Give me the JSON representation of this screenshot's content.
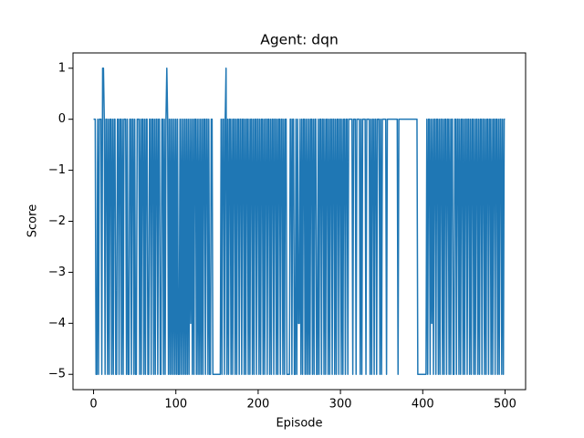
{
  "chart_data": {
    "type": "line",
    "title": "Agent: dqn",
    "x_label": "Episode",
    "y_label": "Score",
    "color": "#1f77b4",
    "xlim": [
      -25,
      525
    ],
    "xticks": [
      0,
      100,
      200,
      300,
      400,
      500
    ],
    "ylim": [
      -5.3,
      1.3
    ],
    "yticks": [
      {
        "value": -5,
        "label": "−5"
      },
      {
        "value": -4,
        "label": "−4"
      },
      {
        "value": -3,
        "label": "−3"
      },
      {
        "value": -2,
        "label": "−2"
      },
      {
        "value": -1,
        "label": "−1"
      },
      0,
      1
    ],
    "values": [
      0,
      0,
      0,
      -5,
      -5,
      0,
      -5,
      0,
      0,
      0,
      -5,
      1,
      1,
      0,
      -5,
      0,
      0,
      -5,
      0,
      -5,
      0,
      0,
      -5,
      0,
      -5,
      0,
      0,
      -5,
      -5,
      0,
      0,
      -5,
      0,
      0,
      -5,
      0,
      -5,
      0,
      0,
      0,
      -5,
      0,
      -5,
      -5,
      0,
      0,
      -5,
      0,
      0,
      -5,
      0,
      -5,
      -5,
      0,
      0,
      0,
      -5,
      0,
      -5,
      0,
      0,
      -5,
      0,
      -5,
      0,
      0,
      -5,
      -5,
      0,
      0,
      -5,
      0,
      0,
      -5,
      0,
      -5,
      0,
      0,
      -5,
      0,
      0,
      -5,
      -5,
      0,
      0,
      -5,
      0,
      -5,
      0,
      1,
      0,
      -5,
      0,
      -5,
      0,
      -5,
      0,
      -5,
      0,
      -5,
      0,
      -5,
      0,
      -5,
      -5,
      0,
      -5,
      0,
      -5,
      0,
      -5,
      0,
      -5,
      0,
      -5,
      0,
      -5,
      0,
      -4,
      0,
      -5,
      0,
      -5,
      0,
      0,
      -5,
      0,
      -5,
      0,
      -5,
      0,
      -5,
      0,
      -5,
      0,
      0,
      -5,
      0,
      0,
      -5,
      0,
      -5,
      -5,
      0,
      0,
      -5,
      -5,
      -5,
      -5,
      -5,
      -5,
      -5,
      -5,
      -5,
      -5,
      0,
      -5,
      0,
      0,
      -5,
      0,
      1,
      -5,
      0,
      -5,
      0,
      0,
      -5,
      0,
      -5,
      0,
      0,
      -5,
      0,
      -5,
      0,
      0,
      -5,
      0,
      0,
      -5,
      0,
      0,
      -5,
      0,
      -5,
      0,
      0,
      -5,
      0,
      -5,
      0,
      0,
      -5,
      0,
      -5,
      0,
      0,
      -5,
      0,
      0,
      -5,
      0,
      -5,
      0,
      0,
      -5,
      0,
      -5,
      0,
      0,
      -5,
      0,
      0,
      -5,
      0,
      -5,
      0,
      0,
      -5,
      0,
      0,
      -5,
      0,
      -5,
      0,
      0,
      -5,
      0,
      0,
      -5,
      0,
      -5,
      0,
      0,
      -5,
      -5,
      -5,
      -5,
      0,
      0,
      -5,
      0,
      0,
      -5,
      -5,
      0,
      -5,
      0,
      -4,
      -4,
      0,
      -5,
      0,
      -5,
      0,
      0,
      -5,
      0,
      -5,
      0,
      -5,
      0,
      -5,
      0,
      0,
      -5,
      0,
      -5,
      0,
      0,
      -5,
      -5,
      0,
      -5,
      0,
      0,
      -5,
      0,
      0,
      -5,
      0,
      -5,
      0,
      0,
      -5,
      0,
      -5,
      0,
      0,
      -5,
      0,
      0,
      -5,
      0,
      -5,
      0,
      0,
      -5,
      0,
      0,
      -5,
      0,
      -5,
      0,
      0,
      -5,
      0,
      0,
      -5,
      0,
      0,
      0,
      0,
      0,
      -5,
      0,
      0,
      0,
      -5,
      0,
      0,
      0,
      0,
      -5,
      0,
      -5,
      0,
      0,
      0,
      0,
      -5,
      0,
      0,
      0,
      0,
      -5,
      0,
      -5,
      0,
      0,
      -5,
      0,
      0,
      -5,
      0,
      0,
      0,
      -5,
      0,
      -5,
      0,
      0,
      0,
      0,
      0,
      -5,
      0,
      0,
      0,
      0,
      0,
      0,
      0,
      0,
      0,
      0,
      0,
      0,
      0,
      -5,
      0,
      0,
      0,
      0,
      0,
      0,
      0,
      0,
      0,
      0,
      0,
      0,
      0,
      0,
      0,
      0,
      0,
      0,
      0,
      0,
      0,
      0,
      0,
      -5,
      -5,
      -5,
      -5,
      -5,
      -5,
      -5,
      -5,
      -5,
      -5,
      -5,
      0,
      -5,
      0,
      0,
      -5,
      0,
      -4,
      0,
      -5,
      0,
      0,
      -5,
      0,
      0,
      -5,
      0,
      -5,
      0,
      0,
      -5,
      0,
      -5,
      0,
      0,
      -5,
      0,
      0,
      -5,
      0,
      -5,
      0,
      0,
      -5,
      -5,
      0,
      0,
      -5,
      0,
      0,
      -5,
      0,
      -5,
      0,
      0,
      -5,
      0,
      -5,
      0,
      0,
      -5,
      0,
      0,
      -5,
      0,
      -5,
      0,
      0,
      -5,
      0,
      -5,
      0,
      0,
      -5,
      0,
      -5,
      0,
      0,
      -5,
      0,
      0,
      -5,
      0,
      -5,
      0,
      0,
      -5,
      0,
      0,
      -5,
      0,
      -5,
      0,
      0,
      -5,
      0,
      0,
      -5,
      0,
      -5,
      0,
      0,
      -5,
      0,
      -5,
      0,
      0
    ]
  }
}
